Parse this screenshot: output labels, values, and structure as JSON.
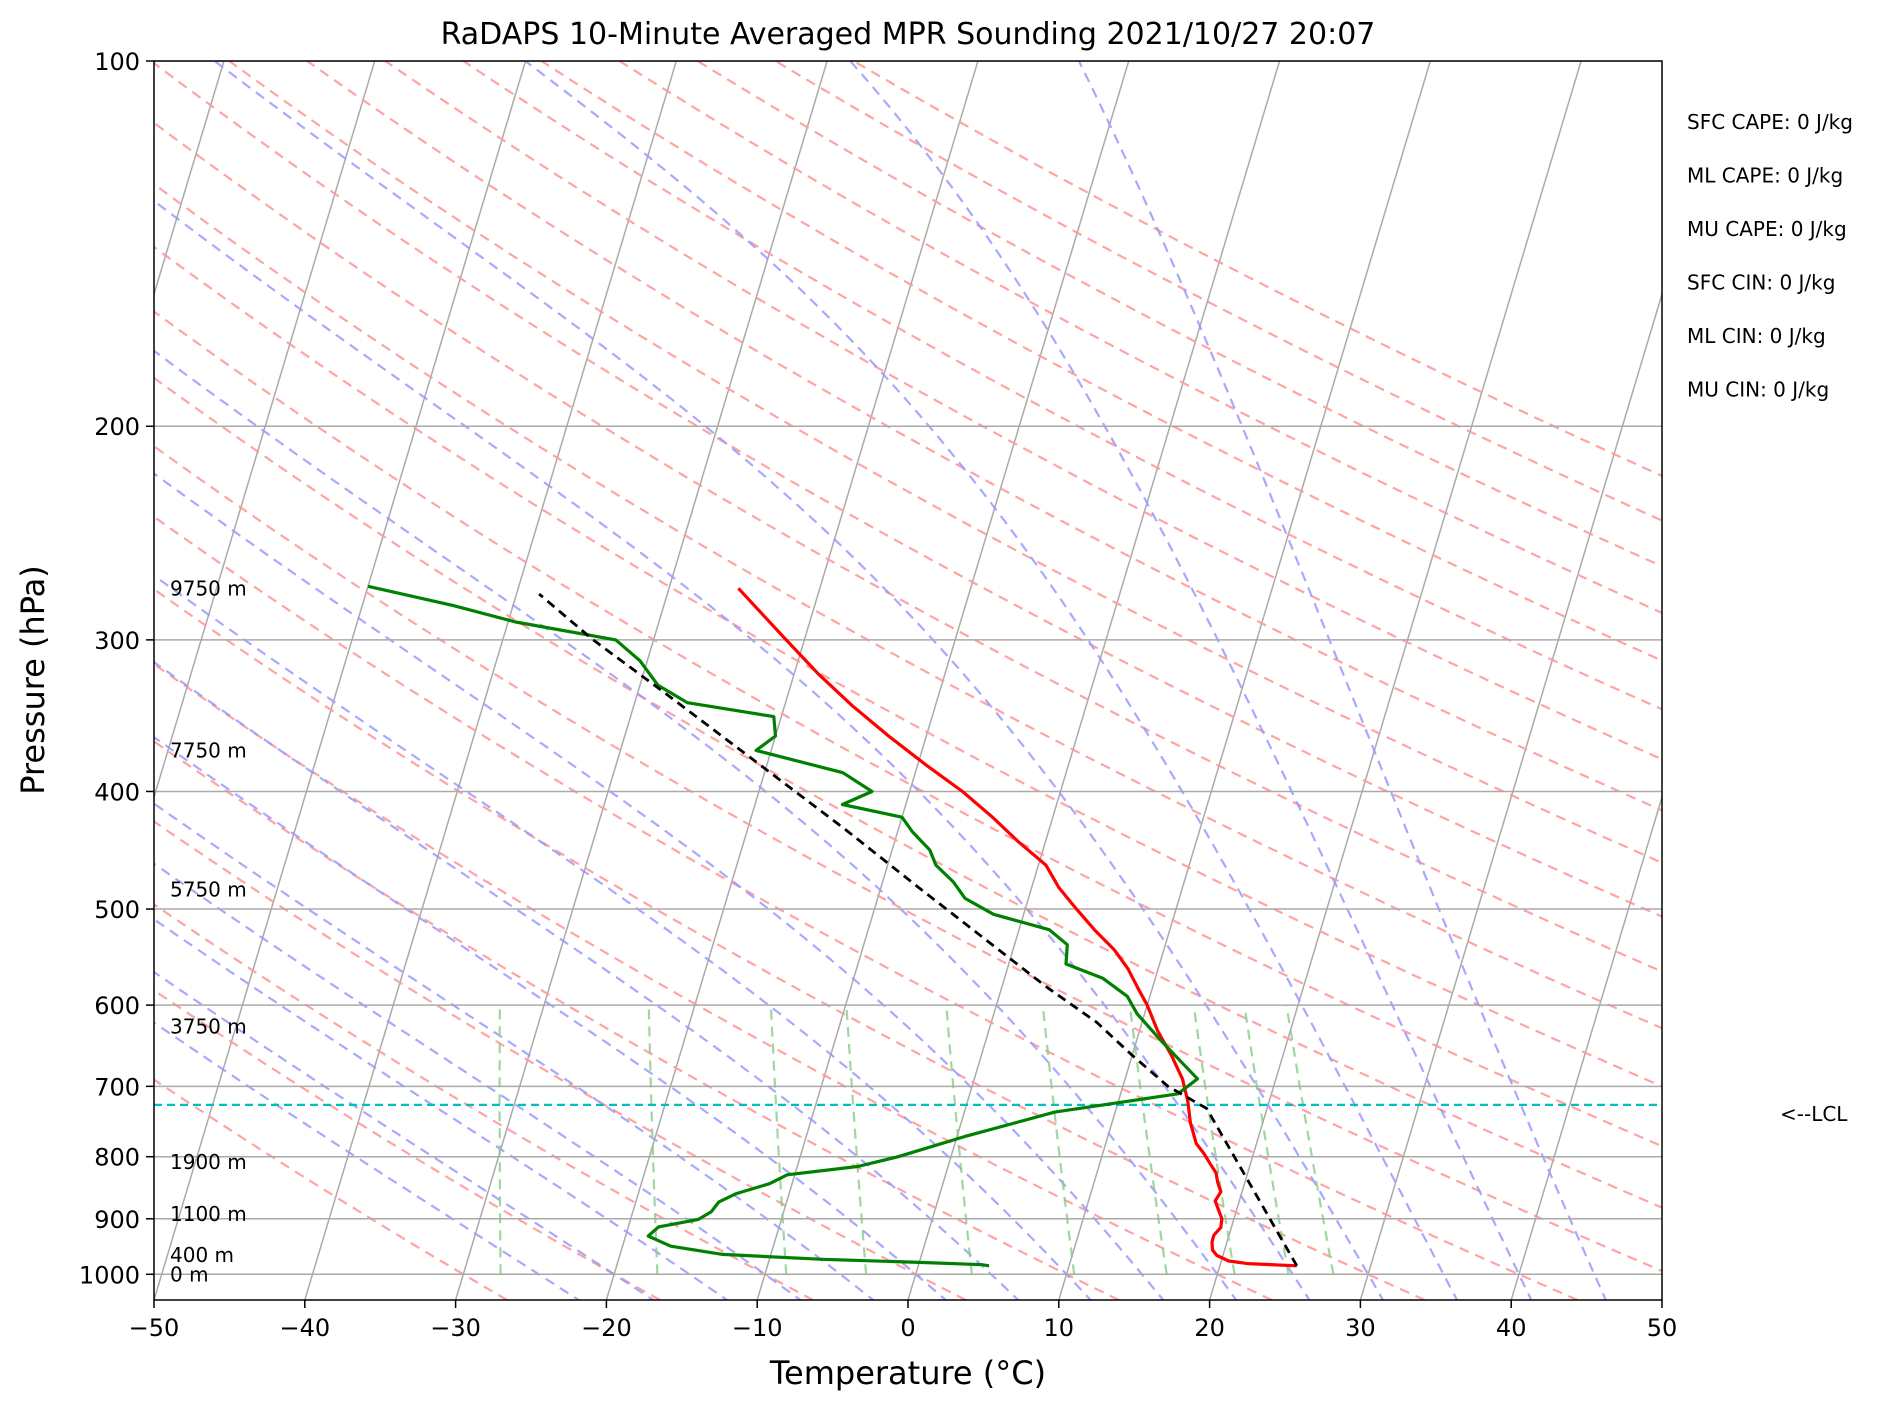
{
  "chart_data": {
    "type": "line",
    "subtype": "skew-T log-P diagram",
    "title": "RaDAPS 10-Minute Averaged MPR Sounding 2021/10/27 20:07",
    "xlabel": "Temperature (°C)",
    "ylabel": "Pressure (hPa)",
    "xlim": [
      -50,
      50
    ],
    "ylim": [
      1050,
      100
    ],
    "y_scale": "log",
    "grid": true,
    "x_ticks": [
      -50,
      -40,
      -30,
      -20,
      -10,
      0,
      10,
      20,
      30,
      40,
      50
    ],
    "x_tick_labels": [
      "−50",
      "−40",
      "−30",
      "−20",
      "−10",
      "0",
      "10",
      "20",
      "30",
      "40",
      "50"
    ],
    "y_ticks": [
      100,
      200,
      300,
      400,
      500,
      600,
      700,
      800,
      900,
      1000
    ],
    "y_tick_labels": [
      "100",
      "200",
      "300",
      "400",
      "500",
      "600",
      "700",
      "800",
      "900",
      "1000"
    ],
    "series": [
      {
        "role": "temperature",
        "color": "#ff0000",
        "points": [
          [
            25.1,
            984
          ],
          [
            21.8,
            980
          ],
          [
            20.5,
            975
          ],
          [
            19.6,
            965
          ],
          [
            19.2,
            955
          ],
          [
            19.0,
            940
          ],
          [
            19.0,
            928
          ],
          [
            19.3,
            915
          ],
          [
            19.2,
            900
          ],
          [
            18.8,
            885
          ],
          [
            18.4,
            870
          ],
          [
            18.6,
            855
          ],
          [
            18.2,
            840
          ],
          [
            17.9,
            825
          ],
          [
            17.3,
            810
          ],
          [
            16.7,
            795
          ],
          [
            16.0,
            780
          ],
          [
            15.2,
            750
          ],
          [
            14.6,
            720
          ],
          [
            13.8,
            690
          ],
          [
            12.6,
            660
          ],
          [
            11.2,
            630
          ],
          [
            10.0,
            600
          ],
          [
            9.0,
            580
          ],
          [
            8.0,
            560
          ],
          [
            6.7,
            540
          ],
          [
            5.0,
            520
          ],
          [
            3.4,
            500
          ],
          [
            1.8,
            480
          ],
          [
            0.5,
            460
          ],
          [
            -1.8,
            440
          ],
          [
            -4.0,
            420
          ],
          [
            -6.5,
            400
          ],
          [
            -9.5,
            380
          ],
          [
            -12.5,
            360
          ],
          [
            -15.5,
            340
          ],
          [
            -18.4,
            320
          ],
          [
            -21.2,
            300
          ],
          [
            -23.4,
            285
          ],
          [
            -25.4,
            272
          ]
        ]
      },
      {
        "role": "dewpoint",
        "color": "#008000",
        "points": [
          [
            4.7,
            984
          ],
          [
            4.2,
            982
          ],
          [
            0.5,
            978
          ],
          [
            -6.5,
            972
          ],
          [
            -13.2,
            963
          ],
          [
            -16.8,
            948
          ],
          [
            -18.5,
            930
          ],
          [
            -18.0,
            914
          ],
          [
            -15.5,
            901
          ],
          [
            -14.8,
            888
          ],
          [
            -14.5,
            872
          ],
          [
            -13.5,
            858
          ],
          [
            -11.5,
            842
          ],
          [
            -10.5,
            828
          ],
          [
            -6.0,
            815
          ],
          [
            -3.5,
            800
          ],
          [
            0.5,
            770
          ],
          [
            6.0,
            735
          ],
          [
            13.8,
            710
          ],
          [
            14.8,
            690
          ],
          [
            13.5,
            670
          ],
          [
            11.5,
            640
          ],
          [
            9.5,
            610
          ],
          [
            8.5,
            590
          ],
          [
            6.5,
            570
          ],
          [
            3.8,
            555
          ],
          [
            3.5,
            535
          ],
          [
            2.0,
            520
          ],
          [
            -2.0,
            505
          ],
          [
            -4.2,
            490
          ],
          [
            -5.3,
            475
          ],
          [
            -6.8,
            460
          ],
          [
            -7.5,
            447
          ],
          [
            -9.0,
            432
          ],
          [
            -10.0,
            420
          ],
          [
            -14.2,
            410
          ],
          [
            -12.5,
            400
          ],
          [
            -14.8,
            386
          ],
          [
            -21.0,
            370
          ],
          [
            -20.0,
            360
          ],
          [
            -20.5,
            347
          ],
          [
            -26.5,
            338
          ],
          [
            -28.8,
            327
          ],
          [
            -30.5,
            312
          ],
          [
            -32.5,
            300
          ],
          [
            -39.5,
            290
          ],
          [
            -44.0,
            281
          ],
          [
            -50.0,
            271
          ]
        ]
      },
      {
        "role": "parcel",
        "color": "#000000",
        "style": "dashed",
        "points": [
          [
            25.1,
            984
          ],
          [
            16.0,
            730
          ],
          [
            13.0,
            700
          ],
          [
            10.0,
            660
          ],
          [
            7.0,
            620
          ],
          [
            3.0,
            580
          ],
          [
            -2.0,
            530
          ],
          [
            -7.5,
            480
          ],
          [
            -13.5,
            430
          ],
          [
            -20.5,
            380
          ],
          [
            -28.5,
            330
          ],
          [
            -34.0,
            300
          ],
          [
            -38.5,
            275
          ]
        ]
      }
    ],
    "lcl": {
      "pressure": 725,
      "label": "<--LCL",
      "color": "#00bfbf"
    },
    "height_labels": [
      {
        "label": "9750 m",
        "pressure": 272
      },
      {
        "label": "7750 m",
        "pressure": 370
      },
      {
        "label": "5750 m",
        "pressure": 482
      },
      {
        "label": "3750 m",
        "pressure": 625
      },
      {
        "label": "1900 m",
        "pressure": 808
      },
      {
        "label": "1100 m",
        "pressure": 892
      },
      {
        "label": "400 m",
        "pressure": 964
      },
      {
        "label": "0 m",
        "pressure": 1000
      }
    ],
    "indices": [
      {
        "label": "SFC CAPE: 0 J/kg"
      },
      {
        "label": "ML CAPE: 0 J/kg"
      },
      {
        "label": "MU CAPE: 0 J/kg"
      },
      {
        "label": "SFC CIN: 0 J/kg"
      },
      {
        "label": "ML CIN: 0 J/kg"
      },
      {
        "label": "MU CIN: 0 J/kg"
      }
    ],
    "background_lines": {
      "isotherms": {
        "color": "#aaaaaa",
        "style": "solid"
      },
      "dry_adiabats": {
        "color": "#ff9999",
        "style": "dashed"
      },
      "moist_adiabats": {
        "color": "#9999ff",
        "style": "dashed"
      },
      "mixing_ratio": {
        "color": "#88cc88",
        "style": "dashed"
      }
    }
  }
}
